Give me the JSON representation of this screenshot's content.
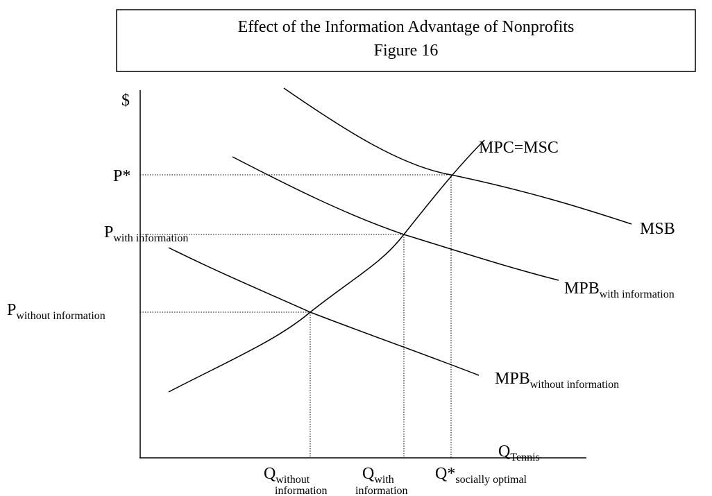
{
  "title": {
    "line1": "Effect of the Information Advantage of Nonprofits",
    "line2": "Figure 16"
  },
  "axes": {
    "y_label": "$",
    "x_label": {
      "main": "Q",
      "sub": "Tennis"
    }
  },
  "curves": {
    "supply": "MPC=MSC",
    "msb": "MSB",
    "mpb_with": {
      "main": "MPB",
      "sub": "with information"
    },
    "mpb_without": {
      "main": "MPB",
      "sub": "without information"
    }
  },
  "prices": [
    {
      "main": "P*"
    },
    {
      "main": "P",
      "sub": "with information"
    },
    {
      "main": "P",
      "sub": "without information"
    }
  ],
  "quantities": [
    {
      "main": "Q",
      "sub": "without",
      "sub2": "information"
    },
    {
      "main": "Q",
      "sub": "with",
      "sub2": "information"
    },
    {
      "main": "Q*",
      "sub": "socially optimal"
    }
  ]
}
